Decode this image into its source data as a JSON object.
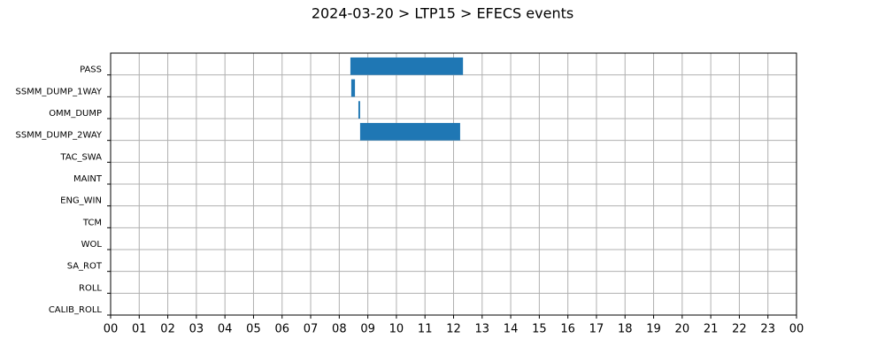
{
  "chart_data": {
    "type": "gantt",
    "title": "2024-03-20 > LTP15 > EFECS events",
    "categories": [
      "PASS",
      "SSMM_DUMP_1WAY",
      "OMM_DUMP",
      "SSMM_DUMP_2WAY",
      "TAC_SWA",
      "MAINT",
      "ENG_WIN",
      "TCM",
      "WOL",
      "SA_ROT",
      "ROLL",
      "CALIB_ROLL"
    ],
    "starts": [
      8.39,
      8.42,
      8.67,
      8.73,
      null,
      null,
      null,
      null,
      null,
      null,
      null,
      null
    ],
    "ends": [
      12.33,
      8.55,
      8.73,
      12.23,
      null,
      null,
      null,
      null,
      null,
      null,
      null,
      null
    ],
    "color": "#1f77b4",
    "xlim": [
      0,
      24
    ],
    "xticks": [
      {
        "value": 0,
        "label": "00"
      },
      {
        "value": 1,
        "label": "01"
      },
      {
        "value": 2,
        "label": "02"
      },
      {
        "value": 3,
        "label": "03"
      },
      {
        "value": 4,
        "label": "04"
      },
      {
        "value": 5,
        "label": "05"
      },
      {
        "value": 6,
        "label": "06"
      },
      {
        "value": 7,
        "label": "07"
      },
      {
        "value": 8,
        "label": "08"
      },
      {
        "value": 9,
        "label": "09"
      },
      {
        "value": 10,
        "label": "10"
      },
      {
        "value": 11,
        "label": "11"
      },
      {
        "value": 12,
        "label": "12"
      },
      {
        "value": 13,
        "label": "13"
      },
      {
        "value": 14,
        "label": "14"
      },
      {
        "value": 15,
        "label": "15"
      },
      {
        "value": 16,
        "label": "16"
      },
      {
        "value": 17,
        "label": "17"
      },
      {
        "value": 18,
        "label": "18"
      },
      {
        "value": 19,
        "label": "19"
      },
      {
        "value": 20,
        "label": "20"
      },
      {
        "value": 21,
        "label": "21"
      },
      {
        "value": 22,
        "label": "22"
      },
      {
        "value": 23,
        "label": "23"
      },
      {
        "value": 24,
        "label": "00"
      }
    ],
    "grid": true
  }
}
